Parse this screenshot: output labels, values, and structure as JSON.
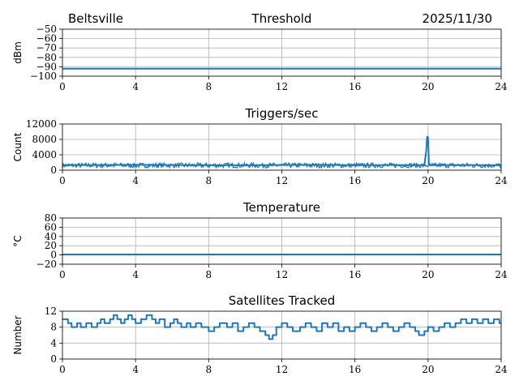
{
  "header": {
    "site": "Beltsville",
    "date": "2025/11/30"
  },
  "line_color": "#1f77b4",
  "chart_data": [
    {
      "type": "line",
      "title": "Threshold",
      "ylabel": "dBm",
      "xlabel": "",
      "xlim": [
        0,
        24
      ],
      "ylim": [
        -100,
        -50
      ],
      "xticks": [
        0,
        4,
        8,
        12,
        16,
        20,
        24
      ],
      "xtick_labels": [
        "0",
        "4",
        "8",
        "12",
        "16",
        "20",
        "24"
      ],
      "yticks": [
        -100,
        -90,
        -80,
        -70,
        -60,
        -50
      ],
      "ytick_labels": [
        "−100",
        "−90",
        "−80",
        "−70",
        "−60",
        "−50"
      ],
      "grid": true,
      "series": [
        {
          "x": [
            0,
            24
          ],
          "y": [
            -92,
            -92
          ]
        }
      ]
    },
    {
      "type": "line",
      "title": "Triggers/sec",
      "ylabel": "Count",
      "xlabel": "",
      "xlim": [
        0,
        24
      ],
      "ylim": [
        0,
        12000
      ],
      "xticks": [
        0,
        4,
        8,
        12,
        16,
        20,
        24
      ],
      "xtick_labels": [
        "0",
        "4",
        "8",
        "12",
        "16",
        "20",
        "24"
      ],
      "yticks": [
        0,
        4000,
        8000,
        12000
      ],
      "ytick_labels": [
        "0",
        "4000",
        "8000",
        "12000"
      ],
      "grid": true,
      "series": [
        {
          "x": [
            0,
            2,
            4,
            6,
            8,
            10,
            12,
            14,
            16,
            18,
            19.8,
            19.9,
            19.95,
            20.0,
            20.05,
            20.1,
            22,
            24
          ],
          "y": [
            1300,
            1350,
            1400,
            1350,
            1300,
            1300,
            1350,
            1400,
            1300,
            1350,
            1300,
            5000,
            8700,
            8500,
            1400,
            1300,
            1350,
            1300
          ],
          "band_low": 600,
          "band_high": 1900
        }
      ]
    },
    {
      "type": "line",
      "title": "Temperature",
      "ylabel": "°C",
      "xlabel": "",
      "xlim": [
        0,
        24
      ],
      "ylim": [
        -20,
        80
      ],
      "xticks": [
        0,
        4,
        8,
        12,
        16,
        20,
        24
      ],
      "xtick_labels": [
        "0",
        "4",
        "8",
        "12",
        "16",
        "20",
        "24"
      ],
      "yticks": [
        -20,
        0,
        20,
        40,
        60,
        80
      ],
      "ytick_labels": [
        "−20",
        "0",
        "20",
        "40",
        "60",
        "80"
      ],
      "grid": true,
      "series": [
        {
          "x": [
            0,
            24
          ],
          "y": [
            1,
            1
          ]
        }
      ]
    },
    {
      "type": "line",
      "title": "Satellites Tracked",
      "ylabel": "Number",
      "xlabel": "",
      "xlim": [
        0,
        24
      ],
      "ylim": [
        0,
        12
      ],
      "xticks": [
        0,
        4,
        8,
        12,
        16,
        20,
        24
      ],
      "xtick_labels": [
        "0",
        "4",
        "8",
        "12",
        "16",
        "20",
        "24"
      ],
      "yticks": [
        0,
        4,
        8,
        12
      ],
      "ytick_labels": [
        "0",
        "4",
        "8",
        "12"
      ],
      "grid": true,
      "series": [
        {
          "step": true,
          "x": [
            0,
            0.3,
            0.5,
            0.8,
            1.0,
            1.3,
            1.6,
            1.9,
            2.1,
            2.3,
            2.6,
            2.8,
            3.0,
            3.2,
            3.4,
            3.6,
            3.8,
            4.0,
            4.3,
            4.6,
            4.9,
            5.1,
            5.3,
            5.6,
            5.9,
            6.1,
            6.3,
            6.5,
            6.8,
            7.0,
            7.3,
            7.6,
            8.0,
            8.3,
            8.6,
            9.0,
            9.3,
            9.6,
            9.9,
            10.2,
            10.5,
            10.8,
            11.1,
            11.3,
            11.5,
            11.7,
            12.0,
            12.3,
            12.6,
            13.0,
            13.3,
            13.6,
            13.9,
            14.2,
            14.5,
            14.8,
            15.1,
            15.4,
            15.7,
            16.0,
            16.3,
            16.6,
            16.9,
            17.2,
            17.5,
            17.8,
            18.1,
            18.4,
            18.7,
            19.0,
            19.3,
            19.5,
            19.8,
            20.0,
            20.3,
            20.6,
            20.9,
            21.2,
            21.5,
            21.8,
            22.1,
            22.4,
            22.7,
            23.0,
            23.3,
            23.6,
            23.9
          ],
          "y": [
            10,
            9,
            8,
            9,
            8,
            9,
            8,
            9,
            10,
            9,
            10,
            11,
            10,
            9,
            10,
            11,
            10,
            9,
            10,
            11,
            10,
            9,
            10,
            8,
            9,
            10,
            9,
            8,
            9,
            8,
            9,
            8,
            7,
            8,
            9,
            8,
            9,
            7,
            8,
            9,
            8,
            7,
            6,
            5,
            6,
            8,
            9,
            8,
            7,
            8,
            9,
            8,
            7,
            9,
            8,
            9,
            7,
            8,
            7,
            8,
            9,
            8,
            7,
            8,
            9,
            8,
            7,
            8,
            9,
            8,
            7,
            6,
            7,
            8,
            7,
            8,
            9,
            8,
            9,
            10,
            9,
            10,
            9,
            10,
            9,
            10,
            9
          ]
        }
      ]
    }
  ]
}
